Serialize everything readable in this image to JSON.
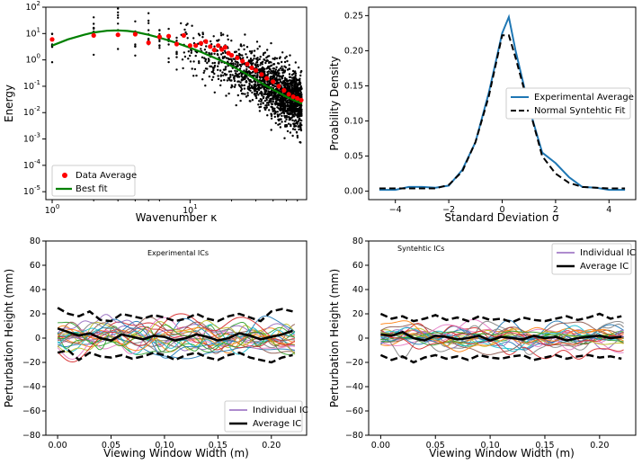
{
  "chart_data": [
    {
      "type": "scatter",
      "panel": "top-left",
      "xscale": "log",
      "yscale": "log",
      "xlim": [
        0.9,
        70
      ],
      "ylim": [
        5e-06,
        100
      ],
      "xlabel": "Wavenumber κ",
      "ylabel": "Energy",
      "x_ticks": [
        {
          "v": 1,
          "label": "10^0"
        },
        {
          "v": 10,
          "label": "10^1"
        }
      ],
      "y_ticks": [
        {
          "v": 1e-05,
          "label": "10^-5"
        },
        {
          "v": 0.0001,
          "label": "10^-4"
        },
        {
          "v": 0.001,
          "label": "10^-3"
        },
        {
          "v": 0.01,
          "label": "10^-2"
        },
        {
          "v": 0.1,
          "label": "10^-1"
        },
        {
          "v": 1,
          "label": "10^0"
        },
        {
          "v": 10,
          "label": "10^1"
        },
        {
          "v": 100,
          "label": "10^2"
        }
      ],
      "legend": {
        "position": "lower-left",
        "entries": [
          "Data Average",
          "Best fit"
        ]
      },
      "colors": {
        "scatter": "#000000",
        "average": "#ff0000",
        "fit": "#008000"
      },
      "data_average": {
        "x": [
          1,
          2,
          3,
          4,
          5,
          6,
          7,
          8,
          9,
          10,
          11,
          12,
          13,
          14,
          15,
          16,
          17,
          18,
          19,
          20,
          22,
          24,
          26,
          28,
          30,
          33,
          36,
          40,
          44,
          48,
          52,
          56,
          60,
          64
        ],
        "y": [
          6,
          8.5,
          9,
          9.5,
          4.5,
          7.5,
          8,
          4,
          8.5,
          3.5,
          3.5,
          4.3,
          5,
          3.2,
          2.4,
          3.5,
          2.5,
          3,
          1.8,
          1.5,
          1.2,
          0.9,
          0.7,
          0.5,
          0.4,
          0.28,
          0.2,
          0.15,
          0.1,
          0.07,
          0.05,
          0.04,
          0.035,
          0.03
        ]
      },
      "best_fit": {
        "x": [
          1,
          1.3,
          1.7,
          2,
          2.5,
          3,
          3.5,
          4,
          5,
          6,
          7,
          8,
          10,
          12,
          15,
          18,
          22,
          26,
          30,
          36,
          42,
          50,
          58,
          65
        ],
        "y": [
          3.5,
          6,
          9,
          11,
          12.8,
          13.2,
          12.6,
          11.5,
          9,
          7,
          5.5,
          4.4,
          2.9,
          2,
          1.2,
          0.8,
          0.45,
          0.28,
          0.18,
          0.1,
          0.065,
          0.04,
          0.028,
          0.022
        ]
      }
    },
    {
      "type": "line",
      "panel": "top-right",
      "xlim": [
        -5,
        5
      ],
      "ylim": [
        -0.012,
        0.262
      ],
      "xlabel": "Standard Deviation σ",
      "ylabel": "Proability Density",
      "x_ticks": [
        -4,
        -2,
        0,
        2,
        4
      ],
      "y_ticks": [
        0.0,
        0.05,
        0.1,
        0.15,
        0.2,
        0.25
      ],
      "legend": {
        "position": "center-right",
        "entries": [
          "Experimental Average",
          "Normal Syntehtic Fit"
        ]
      },
      "series": [
        {
          "name": "Experimental Average",
          "color": "#1f77b4",
          "x": [
            -4.6,
            -4,
            -3.5,
            -3,
            -2.5,
            -2,
            -1.5,
            -1,
            -0.5,
            0,
            0.25,
            0.5,
            1,
            1.5,
            2,
            2.5,
            3,
            3.5,
            4,
            4.6
          ],
          "y": [
            0.002,
            0.002,
            0.006,
            0.006,
            0.005,
            0.008,
            0.03,
            0.07,
            0.14,
            0.225,
            0.248,
            0.2,
            0.12,
            0.055,
            0.04,
            0.02,
            0.006,
            0.005,
            0.002,
            0.002
          ]
        },
        {
          "name": "Normal Syntehtic Fit",
          "color": "#000000",
          "dashed": true,
          "x": [
            -4.6,
            -4,
            -3.5,
            -3,
            -2.5,
            -2,
            -1.5,
            -1,
            -0.5,
            0,
            0.25,
            0.5,
            1,
            1.5,
            2,
            2.5,
            3,
            3.5,
            4,
            4.6
          ],
          "y": [
            0.004,
            0.004,
            0.004,
            0.004,
            0.004,
            0.009,
            0.028,
            0.07,
            0.135,
            0.222,
            0.222,
            0.19,
            0.12,
            0.05,
            0.025,
            0.012,
            0.006,
            0.005,
            0.004,
            0.004
          ]
        }
      ]
    },
    {
      "type": "line",
      "panel": "bottom-left",
      "title": "Experimental ICs",
      "xlim": [
        -0.011,
        0.233
      ],
      "ylim": [
        -80,
        80
      ],
      "xlabel": "Viewing Window Width (m)",
      "ylabel": "Perturbation Height (mm)",
      "x_ticks": [
        "0.00",
        "0.05",
        "0.10",
        "0.15",
        "0.20"
      ],
      "y_ticks": [
        -80,
        -60,
        -40,
        -20,
        0,
        20,
        40,
        60,
        80
      ],
      "legend": {
        "position": "lower-right",
        "entries": [
          "Individual IC",
          "Average IC"
        ]
      },
      "individual_count": 24,
      "palette": [
        "#1f77b4",
        "#ff7f0e",
        "#2ca02c",
        "#d62728",
        "#9467bd",
        "#8c564b",
        "#e377c2",
        "#7f7f7f",
        "#bcbd22",
        "#17becf"
      ],
      "average": {
        "x": [
          0,
          0.01,
          0.02,
          0.03,
          0.04,
          0.05,
          0.06,
          0.07,
          0.08,
          0.09,
          0.1,
          0.11,
          0.12,
          0.13,
          0.14,
          0.15,
          0.16,
          0.17,
          0.18,
          0.19,
          0.2,
          0.21,
          0.22
        ],
        "y": [
          8,
          5,
          2,
          4,
          0,
          -2,
          3,
          1,
          -1,
          2,
          1,
          -2,
          0,
          3,
          1,
          -2,
          0,
          4,
          2,
          -1,
          1,
          3,
          6
        ]
      },
      "upper_band": {
        "x": [
          0,
          0.01,
          0.02,
          0.03,
          0.04,
          0.05,
          0.06,
          0.07,
          0.08,
          0.09,
          0.1,
          0.11,
          0.12,
          0.13,
          0.14,
          0.15,
          0.16,
          0.17,
          0.18,
          0.19,
          0.2,
          0.21,
          0.22
        ],
        "y": [
          25,
          20,
          18,
          22,
          15,
          14,
          20,
          18,
          16,
          19,
          17,
          14,
          16,
          20,
          16,
          14,
          18,
          20,
          17,
          14,
          22,
          24,
          22
        ]
      },
      "lower_band": {
        "x": [
          0,
          0.01,
          0.02,
          0.03,
          0.04,
          0.05,
          0.06,
          0.07,
          0.08,
          0.09,
          0.1,
          0.11,
          0.12,
          0.13,
          0.14,
          0.15,
          0.16,
          0.17,
          0.18,
          0.19,
          0.2,
          0.21,
          0.22
        ],
        "y": [
          -12,
          -10,
          -18,
          -12,
          -15,
          -16,
          -14,
          -17,
          -15,
          -12,
          -14,
          -18,
          -14,
          -12,
          -16,
          -18,
          -14,
          -12,
          -16,
          -18,
          -20,
          -16,
          -14
        ]
      }
    },
    {
      "type": "line",
      "panel": "bottom-right",
      "title": "Syntehtic ICs",
      "xlim": [
        -0.011,
        0.233
      ],
      "ylim": [
        -80,
        80
      ],
      "xlabel": "Viewing Window Width (m)",
      "ylabel": "Perturbation Height (mm)",
      "x_ticks": [
        "0.00",
        "0.05",
        "0.10",
        "0.15",
        "0.20"
      ],
      "y_ticks": [
        -80,
        -60,
        -40,
        -20,
        0,
        20,
        40,
        60,
        80
      ],
      "legend": {
        "position": "upper-right",
        "entries": [
          "Individual IC",
          "Average IC"
        ]
      },
      "individual_count": 24,
      "palette": [
        "#1f77b4",
        "#ff7f0e",
        "#2ca02c",
        "#d62728",
        "#9467bd",
        "#8c564b",
        "#e377c2",
        "#7f7f7f",
        "#bcbd22",
        "#17becf"
      ],
      "average": {
        "x": [
          0,
          0.01,
          0.02,
          0.03,
          0.04,
          0.05,
          0.06,
          0.07,
          0.08,
          0.09,
          0.1,
          0.11,
          0.12,
          0.13,
          0.14,
          0.15,
          0.16,
          0.17,
          0.18,
          0.19,
          0.2,
          0.21,
          0.22
        ],
        "y": [
          3,
          2,
          5,
          0,
          -2,
          2,
          1,
          -1,
          0,
          2,
          -2,
          1,
          0,
          -1,
          2,
          0,
          1,
          -2,
          0,
          1,
          2,
          0,
          1
        ]
      },
      "upper_band": {
        "x": [
          0,
          0.01,
          0.02,
          0.03,
          0.04,
          0.05,
          0.06,
          0.07,
          0.08,
          0.09,
          0.1,
          0.11,
          0.12,
          0.13,
          0.14,
          0.15,
          0.16,
          0.17,
          0.18,
          0.19,
          0.2,
          0.21,
          0.22
        ],
        "y": [
          20,
          16,
          18,
          14,
          16,
          19,
          15,
          17,
          14,
          18,
          15,
          16,
          13,
          17,
          15,
          14,
          16,
          18,
          15,
          17,
          20,
          16,
          18
        ]
      },
      "lower_band": {
        "x": [
          0,
          0.01,
          0.02,
          0.03,
          0.04,
          0.05,
          0.06,
          0.07,
          0.08,
          0.09,
          0.1,
          0.11,
          0.12,
          0.13,
          0.14,
          0.15,
          0.16,
          0.17,
          0.18,
          0.19,
          0.2,
          0.21,
          0.22
        ],
        "y": [
          -14,
          -18,
          -15,
          -20,
          -16,
          -14,
          -17,
          -15,
          -18,
          -14,
          -16,
          -17,
          -15,
          -14,
          -18,
          -16,
          -14,
          -17,
          -15,
          -14,
          -16,
          -15,
          -17
        ]
      }
    }
  ]
}
